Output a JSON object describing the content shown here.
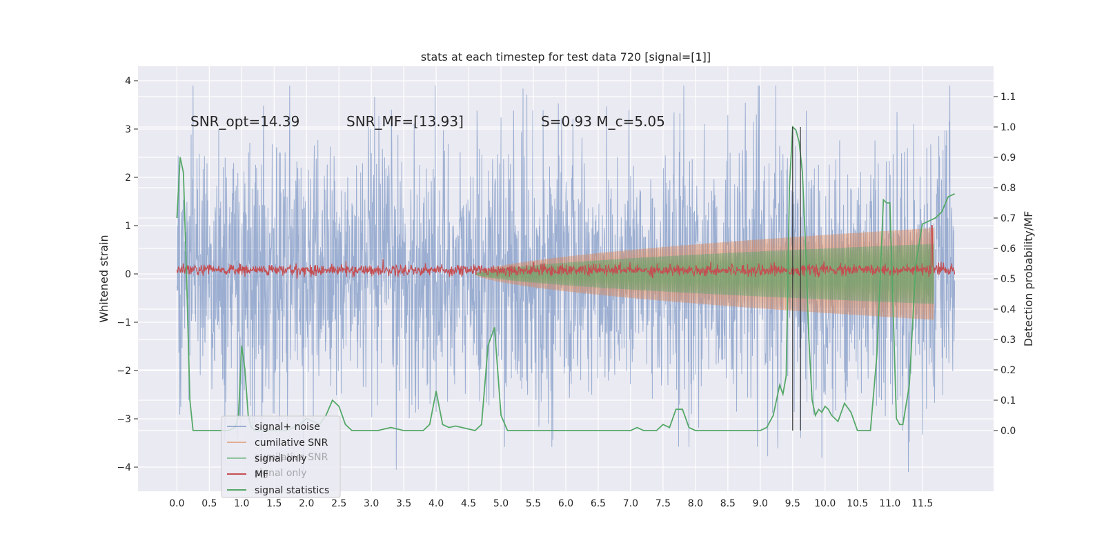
{
  "chart_data": {
    "type": "line",
    "title": "stats at each timestep for test data 720 [signal=[1]]",
    "ylabel_left": "Whitened strain",
    "ylabel_right": "Detection probability/MF",
    "xlim": [
      -0.6,
      12.6
    ],
    "ylim_left": [
      -4.5,
      4.3
    ],
    "ylim_right": [
      -0.2,
      1.2
    ],
    "x_ticks": [
      "0.0",
      "0.5",
      "1.0",
      "1.5",
      "2.0",
      "2.5",
      "3.0",
      "3.5",
      "4.0",
      "4.5",
      "5.0",
      "5.5",
      "6.0",
      "6.5",
      "7.0",
      "7.5",
      "8.0",
      "8.5",
      "9.0",
      "9.5",
      "10.0",
      "10.5",
      "11.0",
      "11.5"
    ],
    "y_ticks_left": [
      "4",
      "3",
      "2",
      "1",
      "0",
      "−1",
      "−2",
      "−3",
      "−4"
    ],
    "y_ticks_right": [
      "1.1",
      "1.0",
      "0.9",
      "0.8",
      "0.7",
      "0.6",
      "0.5",
      "0.4",
      "0.3",
      "0.2",
      "0.1",
      "0.0"
    ],
    "grid": true,
    "annotations": [
      {
        "text": "SNR_opt=14.39"
      },
      {
        "text": "SNR_MF=[13.93]"
      },
      {
        "text": "S=0.93   M_c=5.05"
      }
    ],
    "vertical_lines_x": [
      9.5,
      9.62
    ],
    "signal_envelope": {
      "onset_x": 4.6,
      "end_x": 11.68,
      "cumulative_snr_peak": 0.95,
      "signal_only_peak": 0.62
    },
    "signal_noise_envelope": {
      "x_start": 0.0,
      "x_end": 12.0,
      "typical_amplitude": 1.8,
      "max": 3.9,
      "min": -4.1
    },
    "mf_series": {
      "x_start": 0.0,
      "x_end": 12.0,
      "baseline": 0.08,
      "spike_x": 11.65,
      "spike_value": 1.0
    },
    "signal_statistics": {
      "x": [
        0.0,
        0.05,
        0.1,
        0.15,
        0.2,
        0.25,
        0.3,
        0.4,
        0.5,
        0.6,
        0.7,
        0.8,
        0.9,
        0.95,
        1.0,
        1.05,
        1.1,
        1.15,
        1.2,
        1.3,
        1.4,
        1.5,
        1.6,
        1.7,
        1.8,
        1.9,
        2.0,
        2.1,
        2.2,
        2.3,
        2.4,
        2.5,
        2.6,
        2.7,
        2.8,
        2.9,
        3.0,
        3.1,
        3.2,
        3.3,
        3.4,
        3.5,
        3.6,
        3.7,
        3.8,
        3.9,
        4.0,
        4.1,
        4.2,
        4.3,
        4.4,
        4.5,
        4.6,
        4.7,
        4.8,
        4.9,
        5.0,
        5.1,
        5.2,
        5.3,
        5.5,
        6.0,
        6.5,
        7.0,
        7.1,
        7.2,
        7.3,
        7.4,
        7.5,
        7.6,
        7.7,
        7.8,
        7.9,
        8.0,
        8.5,
        9.0,
        9.1,
        9.2,
        9.3,
        9.35,
        9.4,
        9.45,
        9.5,
        9.55,
        9.6,
        9.65,
        9.7,
        9.75,
        9.8,
        9.85,
        9.9,
        9.95,
        10.0,
        10.05,
        10.1,
        10.2,
        10.3,
        10.4,
        10.5,
        10.6,
        10.7,
        10.8,
        10.9,
        10.95,
        11.0,
        11.05,
        11.1,
        11.15,
        11.2,
        11.3,
        11.4,
        11.5,
        11.6,
        11.7,
        11.8,
        11.9,
        12.0
      ],
      "y": [
        0.7,
        0.9,
        0.85,
        0.5,
        0.1,
        0.0,
        0.0,
        0.0,
        0.0,
        0.0,
        0.0,
        0.0,
        0.01,
        0.05,
        0.28,
        0.2,
        0.05,
        0.01,
        0.0,
        0.0,
        0.0,
        0.0,
        0.0,
        0.0,
        0.01,
        0.02,
        0.04,
        0.03,
        0.02,
        0.05,
        0.1,
        0.08,
        0.02,
        0.0,
        0.0,
        0.0,
        0.0,
        0.0,
        0.005,
        0.01,
        0.005,
        0.0,
        0.0,
        0.0,
        0.0,
        0.02,
        0.13,
        0.02,
        0.01,
        0.015,
        0.01,
        0.005,
        0.0,
        0.02,
        0.28,
        0.34,
        0.05,
        0.0,
        0.0,
        0.0,
        0.0,
        0.0,
        0.0,
        0.0,
        0.01,
        0.0,
        0.0,
        0.0,
        0.02,
        0.01,
        0.07,
        0.07,
        0.01,
        0.0,
        0.0,
        0.0,
        0.01,
        0.05,
        0.15,
        0.12,
        0.18,
        0.8,
        1.0,
        0.99,
        0.95,
        0.85,
        0.6,
        0.3,
        0.1,
        0.05,
        0.07,
        0.06,
        0.08,
        0.07,
        0.05,
        0.03,
        0.09,
        0.06,
        0.0,
        0.0,
        0.0,
        0.25,
        0.76,
        0.75,
        0.75,
        0.4,
        0.04,
        0.02,
        0.02,
        0.15,
        0.55,
        0.68,
        0.69,
        0.7,
        0.72,
        0.77,
        0.78
      ]
    },
    "legend": {
      "placement": "lower-left",
      "entries": [
        {
          "label": "signal+ noise",
          "color": "#4c72b0"
        },
        {
          "label": "cumilative SNR",
          "color": "#dd8452"
        },
        {
          "label": "signal only",
          "color": "#55a868"
        },
        {
          "label": "MF",
          "color": "#c44e52"
        },
        {
          "label": "signal statistics",
          "color": "#55a868"
        }
      ],
      "ghost_entries": [
        "cumilative SNR",
        "signal only"
      ]
    },
    "colors": {
      "background": "#eaeaf2",
      "grid": "#ffffff",
      "signal_noise": "#4c72b0",
      "cumulative_snr": "#dd8452",
      "signal_only": "#55a868",
      "mf": "#c44e52",
      "signal_statistics": "#55a868",
      "vlines": "#333333"
    }
  }
}
